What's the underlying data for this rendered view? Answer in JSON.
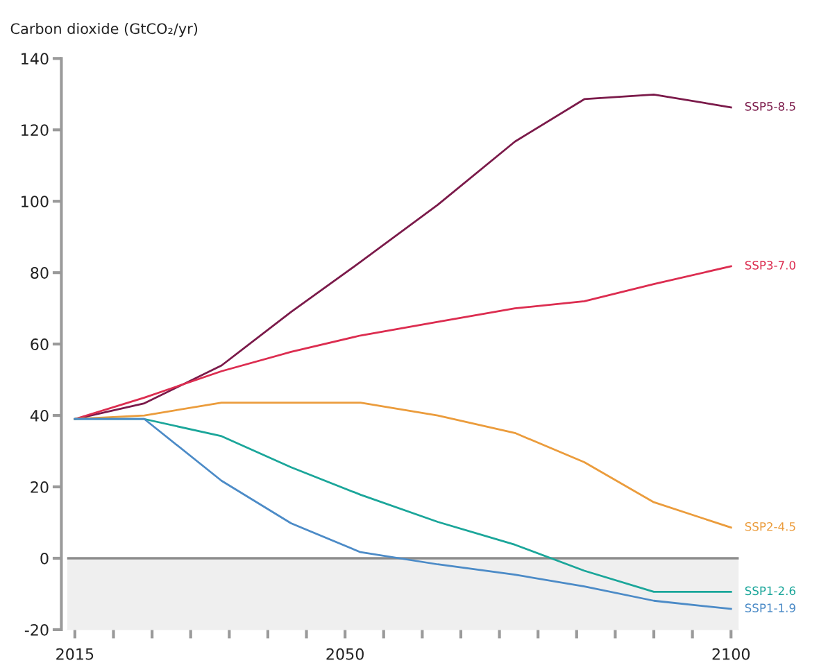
{
  "chart_data": {
    "type": "line",
    "ylabel": "Carbon dioxide (GtCO₂/yr)",
    "x": [
      2015,
      2024,
      2034,
      2043,
      2052,
      2062,
      2072,
      2081,
      2090,
      2100
    ],
    "series": [
      {
        "name": "SSP5-8.5",
        "color": "#7b1a4a",
        "values": [
          39,
          43.4,
          54,
          69,
          83,
          99,
          116.7,
          128.6,
          129.9,
          126.3
        ]
      },
      {
        "name": "SSP3-7.0",
        "color": "#dc2d50",
        "values": [
          39,
          45,
          52.4,
          57.8,
          62.4,
          66.2,
          70,
          72,
          76.8,
          81.8
        ]
      },
      {
        "name": "SSP2-4.5",
        "color": "#eb9c3c",
        "values": [
          39,
          40,
          43.6,
          43.6,
          43.6,
          40,
          35.1,
          26.9,
          15.7,
          8.6
        ]
      },
      {
        "name": "SSP1-2.6",
        "color": "#1ba69a",
        "values": [
          39,
          39,
          34.2,
          25.5,
          17.8,
          10.2,
          3.8,
          -3.5,
          -9.4,
          -9.4
        ]
      },
      {
        "name": "SSP1-1.9",
        "color": "#4c8bc7",
        "values": [
          39,
          39,
          21.7,
          9.8,
          1.7,
          -1.7,
          -4.6,
          -7.9,
          -11.9,
          -14.2
        ]
      }
    ],
    "xlim": [
      2014,
      2101
    ],
    "ylim": [
      -20,
      140
    ],
    "xticks": [
      2015,
      {
        "value": 2020,
        "label": null
      },
      {
        "value": 2025,
        "label": null
      },
      {
        "value": 2030,
        "label": null
      },
      {
        "value": 2035,
        "label": null
      },
      {
        "value": 2040,
        "label": null
      },
      {
        "value": 2045,
        "label": null
      },
      2050,
      {
        "value": 2055,
        "label": null
      },
      {
        "value": 2060,
        "label": null
      },
      {
        "value": 2065,
        "label": null
      },
      {
        "value": 2070,
        "label": null
      },
      {
        "value": 2075,
        "label": null
      },
      {
        "value": 2080,
        "label": null
      },
      {
        "value": 2085,
        "label": null
      },
      {
        "value": 2090,
        "label": null
      },
      {
        "value": 2095,
        "label": null
      },
      2100
    ],
    "yticks": [
      -20,
      0,
      20,
      40,
      60,
      80,
      100,
      120,
      140
    ],
    "ref_lines": [
      {
        "axis": "y",
        "value": 0,
        "label": null,
        "color": "#8c8c8c"
      }
    ],
    "bands": [
      {
        "axis": "y",
        "from": -20,
        "to": 0,
        "label": null,
        "color": "#efefef"
      }
    ],
    "grid": false,
    "legend": false,
    "marker": "none",
    "line_style": "solid"
  }
}
